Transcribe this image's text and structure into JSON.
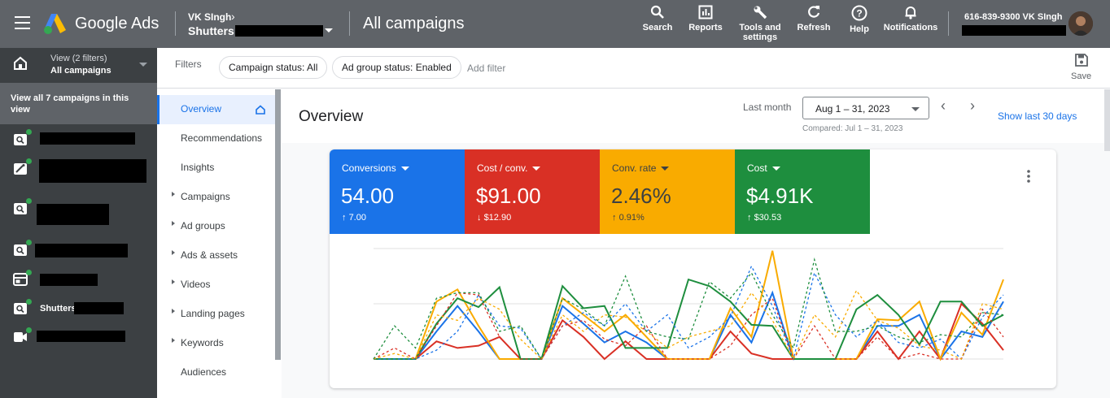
{
  "topbar": {
    "brand": "Google Ads",
    "account_name": "VK SIngh",
    "account_sub": "Shutters",
    "page_title": "All campaigns",
    "tools": [
      {
        "label": "Search",
        "icon": "search-icon"
      },
      {
        "label": "Reports",
        "icon": "reports-icon"
      },
      {
        "label": "Tools and settings",
        "icon": "wrench-icon"
      },
      {
        "label": "Refresh",
        "icon": "refresh-icon"
      },
      {
        "label": "Help",
        "icon": "help-icon"
      },
      {
        "label": "Notifications",
        "icon": "bell-icon"
      }
    ],
    "user_line": "616-839-9300 VK SIngh"
  },
  "leftnav": {
    "view_line1": "View (2 filters)",
    "view_line2": "All campaigns",
    "view_all": "View all 7 campaigns in this view",
    "campaigns": [
      {
        "icon": "search-campaign-icon",
        "label": ""
      },
      {
        "icon": "performance-max-icon",
        "label": ""
      },
      {
        "icon": "search-campaign-icon",
        "label": ""
      },
      {
        "icon": "search-campaign-icon",
        "label": ""
      },
      {
        "icon": "display-campaign-icon",
        "label": ""
      },
      {
        "icon": "search-campaign-icon",
        "label": "Shutters"
      },
      {
        "icon": "video-campaign-icon",
        "label": ""
      }
    ]
  },
  "filterbar": {
    "label": "Filters",
    "chips": [
      "Campaign status: All",
      "Ad group status: Enabled"
    ],
    "add_filter": "Add filter",
    "save_label": "Save"
  },
  "subnav": {
    "items": [
      {
        "label": "Overview",
        "active": true,
        "expandable": false
      },
      {
        "label": "Recommendations",
        "active": false,
        "expandable": false
      },
      {
        "label": "Insights",
        "active": false,
        "expandable": false
      },
      {
        "label": "Campaigns",
        "active": false,
        "expandable": true
      },
      {
        "label": "Ad groups",
        "active": false,
        "expandable": true
      },
      {
        "label": "Ads & assets",
        "active": false,
        "expandable": true
      },
      {
        "label": "Videos",
        "active": false,
        "expandable": true
      },
      {
        "label": "Landing pages",
        "active": false,
        "expandable": true
      },
      {
        "label": "Keywords",
        "active": false,
        "expandable": true
      },
      {
        "label": "Audiences",
        "active": false,
        "expandable": false
      }
    ]
  },
  "overview": {
    "title": "Overview",
    "period_label": "Last month",
    "date_range": "Aug 1 – 31, 2023",
    "compared": "Compared: Jul 1 – 31, 2023",
    "show_last": "Show last 30 days"
  },
  "metrics": [
    {
      "name": "Conversions",
      "value": "54.00",
      "delta": "7.00",
      "direction": "up",
      "color": "#1a73e8"
    },
    {
      "name": "Cost / conv.",
      "value": "$91.00",
      "delta": "$12.90",
      "direction": "down",
      "color": "#d93025"
    },
    {
      "name": "Conv. rate",
      "value": "2.46%",
      "delta": "0.91%",
      "direction": "up",
      "color": "#f9ab00"
    },
    {
      "name": "Cost",
      "value": "$4.91K",
      "delta": "$30.53",
      "direction": "up",
      "color": "#1e8e3e"
    }
  ],
  "chart_data": {
    "type": "line",
    "x": [
      1,
      2,
      3,
      4,
      5,
      6,
      7,
      8,
      9,
      10,
      11,
      12,
      13,
      14,
      15,
      16,
      17,
      18,
      19,
      20,
      21,
      22,
      23,
      24,
      25,
      26,
      27,
      28,
      29,
      30,
      31
    ],
    "ylim": [
      0,
      100
    ],
    "grid": true,
    "series": [
      {
        "color": "#1a73e8",
        "dashed": false,
        "values": [
          0,
          0,
          0,
          25,
          48,
          25,
          0,
          0,
          0,
          48,
          32,
          15,
          25,
          15,
          0,
          0,
          0,
          40,
          15,
          60,
          0,
          0,
          0,
          0,
          30,
          30,
          40,
          0,
          25,
          20,
          52
        ]
      },
      {
        "color": "#d93025",
        "dashed": false,
        "values": [
          0,
          0,
          0,
          16,
          10,
          12,
          20,
          0,
          0,
          35,
          20,
          0,
          16,
          0,
          0,
          0,
          0,
          25,
          5,
          0,
          0,
          0,
          0,
          0,
          25,
          0,
          25,
          0,
          50,
          32,
          8
        ]
      },
      {
        "color": "#f9ab00",
        "dashed": false,
        "values": [
          0,
          0,
          0,
          52,
          63,
          30,
          0,
          0,
          0,
          55,
          40,
          25,
          40,
          20,
          0,
          0,
          0,
          46,
          20,
          98,
          0,
          0,
          0,
          0,
          36,
          35,
          52,
          0,
          42,
          22,
          72
        ]
      },
      {
        "color": "#1e8e3e",
        "dashed": false,
        "values": [
          0,
          0,
          0,
          32,
          55,
          47,
          65,
          0,
          0,
          66,
          46,
          48,
          10,
          10,
          10,
          72,
          66,
          52,
          31,
          30,
          0,
          0,
          0,
          45,
          58,
          40,
          13,
          52,
          52,
          30,
          40
        ]
      },
      {
        "color": "#1a73e8",
        "dashed": true,
        "values": [
          0,
          0,
          0,
          8,
          25,
          58,
          30,
          28,
          0,
          30,
          42,
          30,
          50,
          25,
          40,
          10,
          20,
          38,
          84,
          48,
          0,
          78,
          40,
          20,
          35,
          15,
          10,
          18,
          0,
          38,
          58
        ]
      },
      {
        "color": "#d93025",
        "dashed": true,
        "values": [
          0,
          10,
          0,
          30,
          60,
          58,
          20,
          0,
          0,
          30,
          35,
          18,
          12,
          30,
          0,
          0,
          0,
          12,
          40,
          55,
          0,
          30,
          0,
          0,
          20,
          0,
          5,
          0,
          0,
          45,
          20
        ]
      },
      {
        "color": "#f9ab00",
        "dashed": true,
        "values": [
          0,
          5,
          0,
          40,
          35,
          55,
          45,
          18,
          0,
          40,
          25,
          40,
          38,
          25,
          10,
          20,
          25,
          30,
          60,
          35,
          0,
          40,
          20,
          62,
          35,
          28,
          12,
          8,
          0,
          50,
          45
        ]
      },
      {
        "color": "#1e8e3e",
        "dashed": true,
        "values": [
          0,
          30,
          10,
          55,
          60,
          60,
          25,
          30,
          0,
          55,
          45,
          30,
          75,
          25,
          20,
          18,
          70,
          55,
          78,
          40,
          10,
          90,
          25,
          25,
          30,
          20,
          15,
          22,
          20,
          42,
          40
        ]
      }
    ]
  }
}
